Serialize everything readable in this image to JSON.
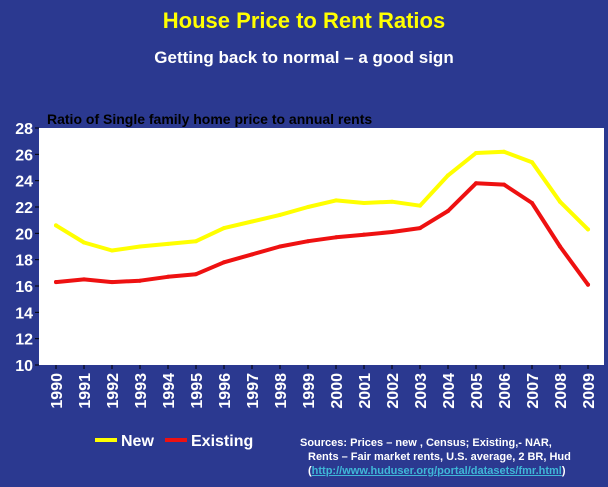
{
  "header": {
    "title": "House Price to Rent Ratios",
    "subtitle": "Getting back to normal –  a good sign"
  },
  "chart_data": {
    "type": "line",
    "title": "Ratio of Single family home price to annual rents",
    "x": [
      "1990",
      "1991",
      "1992",
      "1993",
      "1994",
      "1995",
      "1996",
      "1997",
      "1998",
      "1999",
      "2000",
      "2001",
      "2002",
      "2003",
      "2004",
      "2005",
      "2006",
      "2007",
      "2008",
      "2009"
    ],
    "ylim": [
      10,
      28
    ],
    "yticks": [
      10,
      12,
      14,
      16,
      18,
      20,
      22,
      24,
      26,
      28
    ],
    "grid": false,
    "legend_position": "bottom-left",
    "series": [
      {
        "name": "New",
        "color": "#ffff00",
        "values": [
          20.6,
          19.3,
          18.7,
          19.0,
          19.2,
          19.4,
          20.4,
          20.9,
          21.4,
          22.0,
          22.5,
          22.3,
          22.4,
          22.1,
          24.4,
          26.1,
          26.2,
          25.4,
          22.4,
          20.3
        ]
      },
      {
        "name": "Existing",
        "color": "#ee1111",
        "values": [
          16.3,
          16.5,
          16.3,
          16.4,
          16.7,
          16.9,
          17.8,
          18.4,
          19.0,
          19.4,
          19.7,
          19.9,
          20.1,
          20.4,
          21.7,
          23.8,
          23.7,
          22.3,
          19.0,
          16.1
        ]
      }
    ]
  },
  "colors": {
    "background": "#2b3990",
    "plot_background": "#ffffff",
    "title": "#ffff00",
    "link": "#3fb8d8"
  },
  "sources": {
    "line1": "Sources: Prices – new , Census; Existing,-   NAR,",
    "line2": "Rents – Fair market  rents, U.S. average, 2 BR,  Hud",
    "paren_open": "(",
    "link_text": "http://www.huduser.org/portal/datasets/fmr.html",
    "paren_close": ")"
  }
}
